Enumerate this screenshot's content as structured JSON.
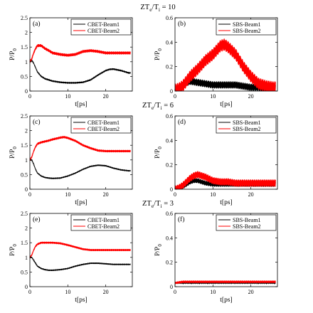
{
  "rows": [
    {
      "title_main": "ZT",
      "title_sub1": "e",
      "title_mid": "/T",
      "title_sub2": "i",
      "title_tail": " = 10"
    },
    {
      "title_main": "ZT",
      "title_sub1": "e",
      "title_mid": "/T",
      "title_sub2": "i",
      "title_tail": " = 6"
    },
    {
      "title_main": "ZT",
      "title_sub1": "e",
      "title_mid": "/T",
      "title_sub2": "i",
      "title_tail": " = 3"
    }
  ],
  "axis_text": {
    "ylabel_main": "P/P",
    "ylabel_sub": "0",
    "xlabel": "t[ps]"
  },
  "colors": {
    "beam1": "#000000",
    "beam2": "#ff0000"
  },
  "chart_data": [
    {
      "type": "line",
      "panel_label": "(a)",
      "row": 0,
      "col": 0,
      "xlim": [
        0,
        27
      ],
      "ylim": [
        0,
        2.5
      ],
      "xticks": [
        "0",
        "10",
        "20"
      ],
      "yticks": [
        "0",
        "0.5",
        "1",
        "1.5",
        "2",
        "2.5"
      ],
      "legend_position": "top-right",
      "series": [
        {
          "name": "CBET-Beam1",
          "color": "#000000",
          "noise": 0.03,
          "x": [
            0,
            0.5,
            1,
            1.5,
            2,
            3,
            4,
            5,
            6,
            8,
            10,
            12,
            14,
            16,
            18,
            20,
            21,
            22,
            24,
            26
          ],
          "y": [
            1.0,
            1.05,
            0.95,
            0.8,
            0.65,
            0.5,
            0.42,
            0.38,
            0.34,
            0.3,
            0.28,
            0.28,
            0.3,
            0.38,
            0.55,
            0.7,
            0.74,
            0.75,
            0.7,
            0.62
          ]
        },
        {
          "name": "CBET-Beam2",
          "color": "#ff0000",
          "noise": 0.05,
          "x": [
            0,
            0.5,
            1,
            1.5,
            2,
            3,
            4,
            5,
            6,
            8,
            10,
            12,
            14,
            16,
            18,
            20,
            22,
            24,
            26
          ],
          "y": [
            1.0,
            1.1,
            1.3,
            1.45,
            1.55,
            1.55,
            1.45,
            1.38,
            1.3,
            1.25,
            1.22,
            1.25,
            1.35,
            1.38,
            1.35,
            1.3,
            1.3,
            1.3,
            1.3
          ]
        }
      ]
    },
    {
      "type": "line",
      "panel_label": "(b)",
      "row": 0,
      "col": 1,
      "xlim": [
        0,
        27
      ],
      "ylim": [
        0,
        0.6
      ],
      "xticks": [
        "0",
        "10",
        "20"
      ],
      "yticks": [
        "0",
        "0.2",
        "0.4",
        "0.6"
      ],
      "legend_position": "top-right",
      "series": [
        {
          "name": "SBS-Beam1",
          "color": "#000000",
          "noise": 0.03,
          "x": [
            0,
            1,
            2,
            3,
            4,
            6,
            8,
            10,
            12,
            14,
            16,
            18,
            20,
            22,
            24,
            26
          ],
          "y": [
            0.0,
            0.01,
            0.04,
            0.07,
            0.08,
            0.07,
            0.06,
            0.05,
            0.05,
            0.05,
            0.05,
            0.04,
            0.03,
            0.03,
            0.02,
            0.02
          ]
        },
        {
          "name": "SBS-Beam2",
          "color": "#ff0000",
          "noise": 0.05,
          "x": [
            0,
            1,
            2,
            3,
            4,
            6,
            8,
            10,
            12,
            13,
            14,
            16,
            18,
            20,
            22,
            24,
            26
          ],
          "y": [
            0.01,
            0.02,
            0.04,
            0.08,
            0.12,
            0.18,
            0.25,
            0.3,
            0.37,
            0.38,
            0.36,
            0.3,
            0.2,
            0.12,
            0.06,
            0.04,
            0.03
          ]
        }
      ]
    },
    {
      "type": "line",
      "panel_label": "(c)",
      "row": 1,
      "col": 0,
      "xlim": [
        0,
        27
      ],
      "ylim": [
        0,
        2.5
      ],
      "xticks": [
        "0",
        "10",
        "20"
      ],
      "yticks": [
        "0",
        "0.5",
        "1",
        "1.5",
        "2",
        "2.5"
      ],
      "legend_position": "top-right",
      "series": [
        {
          "name": "CBET-Beam1",
          "color": "#000000",
          "noise": 0.025,
          "x": [
            0,
            0.5,
            1,
            1.5,
            2,
            3,
            4,
            5,
            6,
            8,
            10,
            12,
            14,
            16,
            18,
            20,
            22,
            24,
            26
          ],
          "y": [
            1.0,
            1.0,
            0.85,
            0.68,
            0.55,
            0.45,
            0.4,
            0.38,
            0.37,
            0.38,
            0.45,
            0.55,
            0.68,
            0.78,
            0.82,
            0.8,
            0.72,
            0.66,
            0.63
          ]
        },
        {
          "name": "CBET-Beam2",
          "color": "#ff0000",
          "noise": 0.04,
          "x": [
            0,
            0.5,
            1,
            1.5,
            2,
            3,
            4,
            5,
            6,
            8,
            9,
            10,
            12,
            14,
            16,
            18,
            20,
            22,
            24,
            26
          ],
          "y": [
            1.0,
            1.1,
            1.3,
            1.45,
            1.55,
            1.6,
            1.63,
            1.66,
            1.7,
            1.76,
            1.78,
            1.75,
            1.65,
            1.5,
            1.4,
            1.32,
            1.3,
            1.3,
            1.3,
            1.3
          ]
        }
      ]
    },
    {
      "type": "line",
      "panel_label": "(d)",
      "row": 1,
      "col": 1,
      "xlim": [
        0,
        27
      ],
      "ylim": [
        0,
        0.6
      ],
      "xticks": [
        "0",
        "10",
        "20"
      ],
      "yticks": [
        "0",
        "0.2",
        "0.4",
        "0.6"
      ],
      "legend_position": "top-right",
      "series": [
        {
          "name": "SBS-Beam1",
          "color": "#000000",
          "noise": 0.02,
          "x": [
            0,
            1,
            2,
            3,
            4,
            5,
            6,
            7,
            8,
            10,
            12,
            14,
            16,
            18,
            20,
            22,
            24,
            26
          ],
          "y": [
            0.0,
            0.01,
            0.02,
            0.04,
            0.06,
            0.07,
            0.07,
            0.06,
            0.05,
            0.04,
            0.04,
            0.04,
            0.04,
            0.04,
            0.04,
            0.04,
            0.04,
            0.04
          ]
        },
        {
          "name": "SBS-Beam2",
          "color": "#ff0000",
          "noise": 0.03,
          "x": [
            0,
            1,
            2,
            3,
            4,
            5,
            6,
            7,
            8,
            10,
            12,
            14,
            16,
            18,
            20,
            22,
            24,
            26
          ],
          "y": [
            0.0,
            0.01,
            0.03,
            0.06,
            0.09,
            0.11,
            0.12,
            0.11,
            0.1,
            0.07,
            0.06,
            0.06,
            0.05,
            0.05,
            0.05,
            0.05,
            0.05,
            0.05
          ]
        }
      ]
    },
    {
      "type": "line",
      "panel_label": "(e)",
      "row": 2,
      "col": 0,
      "xlim": [
        0,
        27
      ],
      "ylim": [
        0,
        2.5
      ],
      "xticks": [
        "0",
        "10",
        "20"
      ],
      "yticks": [
        "0",
        "0.5",
        "1",
        "1.5",
        "2",
        "2.5"
      ],
      "legend_position": "top-right",
      "series": [
        {
          "name": "CBET-Beam1",
          "color": "#000000",
          "noise": 0.025,
          "x": [
            0,
            0.5,
            1,
            1.5,
            2,
            3,
            4,
            5,
            6,
            8,
            10,
            12,
            14,
            16,
            18,
            20,
            22,
            24,
            26
          ],
          "y": [
            1.0,
            1.0,
            0.9,
            0.8,
            0.7,
            0.62,
            0.58,
            0.56,
            0.56,
            0.58,
            0.62,
            0.7,
            0.76,
            0.8,
            0.8,
            0.78,
            0.76,
            0.76,
            0.76
          ]
        },
        {
          "name": "CBET-Beam2",
          "color": "#ff0000",
          "noise": 0.035,
          "x": [
            0,
            0.5,
            1,
            1.5,
            2,
            3,
            4,
            5,
            6,
            8,
            10,
            12,
            14,
            16,
            18,
            20,
            22,
            24,
            26
          ],
          "y": [
            1.0,
            1.08,
            1.25,
            1.38,
            1.45,
            1.5,
            1.5,
            1.5,
            1.5,
            1.48,
            1.42,
            1.35,
            1.28,
            1.25,
            1.25,
            1.25,
            1.25,
            1.25,
            1.25
          ]
        }
      ]
    },
    {
      "type": "line",
      "panel_label": "(f)",
      "row": 2,
      "col": 1,
      "xlim": [
        0,
        27
      ],
      "ylim": [
        0,
        0.6
      ],
      "xticks": [
        "0",
        "10",
        "20"
      ],
      "yticks": [
        "0",
        "0.2",
        "0.4",
        "0.6"
      ],
      "legend_position": "top-right",
      "series": [
        {
          "name": "SBS-Beam1",
          "color": "#000000",
          "noise": 0.005,
          "x": [
            0,
            1,
            2,
            4,
            6,
            8,
            10,
            12,
            14,
            16,
            18,
            20,
            22,
            24,
            26
          ],
          "y": [
            0.03,
            0.03,
            0.03,
            0.03,
            0.03,
            0.03,
            0.03,
            0.03,
            0.03,
            0.03,
            0.03,
            0.03,
            0.03,
            0.03,
            0.03
          ]
        },
        {
          "name": "SBS-Beam2",
          "color": "#ff0000",
          "noise": 0.01,
          "x": [
            0,
            1,
            2,
            4,
            6,
            8,
            10,
            12,
            14,
            16,
            18,
            20,
            22,
            24,
            26
          ],
          "y": [
            0.03,
            0.035,
            0.04,
            0.04,
            0.04,
            0.04,
            0.04,
            0.04,
            0.04,
            0.04,
            0.04,
            0.04,
            0.04,
            0.04,
            0.04
          ]
        }
      ]
    }
  ]
}
